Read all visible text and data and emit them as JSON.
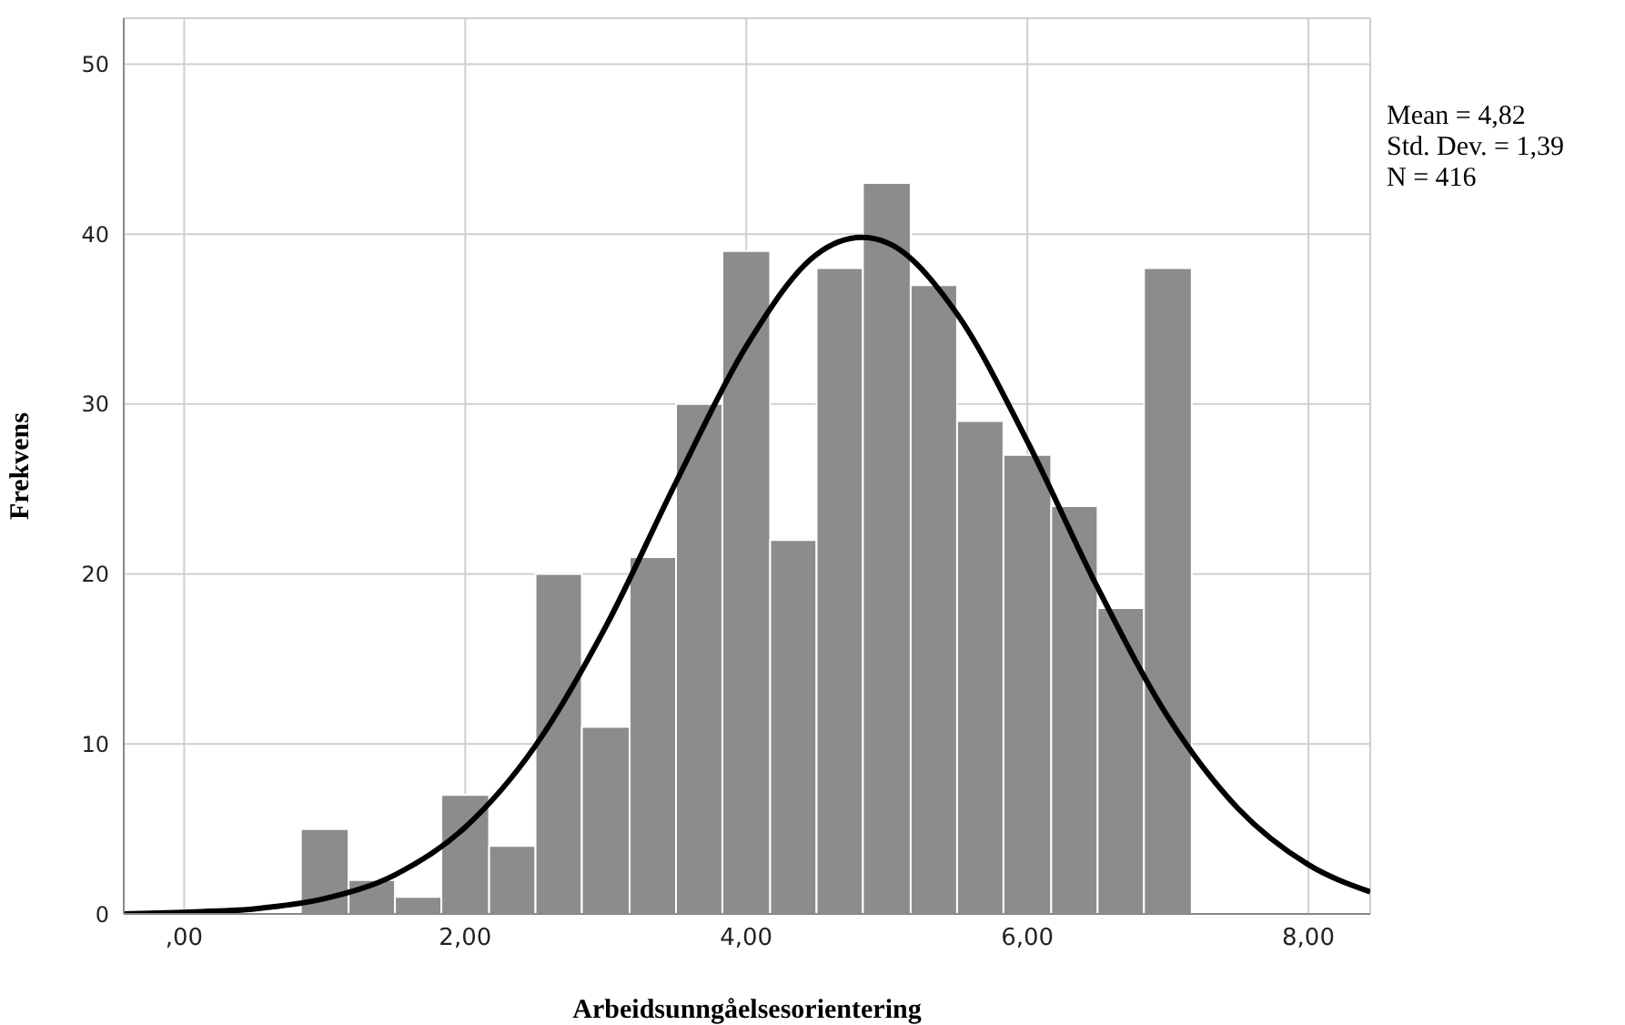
{
  "chart_data": {
    "type": "histogram",
    "xlabel": "Arbeidsunngåelsesorientering",
    "ylabel": "Frekvens",
    "bins": [
      0.83,
      1.17,
      1.5,
      1.83,
      2.17,
      2.5,
      2.83,
      3.17,
      3.5,
      3.83,
      4.17,
      4.5,
      4.83,
      5.17,
      5.5,
      5.83,
      6.17,
      6.5,
      6.83,
      7.17
    ],
    "values": [
      5,
      2,
      1,
      7,
      4,
      20,
      11,
      21,
      30,
      39,
      22,
      38,
      43,
      37,
      29,
      27,
      24,
      18,
      38
    ],
    "color": "#8c8c8c",
    "series": [
      {
        "type": "line",
        "color": "#000000",
        "x": [
          -0.43,
          0,
          0.5,
          1,
          1.5,
          2,
          2.5,
          3,
          3.5,
          4,
          4.5,
          4.82,
          5,
          5.5,
          6,
          6.5,
          7,
          7.5,
          8,
          8.44
        ],
        "values": [
          0,
          0.1,
          0.3,
          0.9,
          2.3,
          5.1,
          9.9,
          16.9,
          25.4,
          33.4,
          38.8,
          39.8,
          39.5,
          35.3,
          27.8,
          19.2,
          11.6,
          6.2,
          2.9,
          1.3
        ]
      }
    ],
    "xlim": [
      -0.43,
      8.44
    ],
    "xticks": [
      {
        "value": 0,
        "label": ",00"
      },
      {
        "value": 2,
        "label": "2,00"
      },
      {
        "value": 4,
        "label": "4,00"
      },
      {
        "value": 6,
        "label": "6,00"
      },
      {
        "value": 8,
        "label": "8,00"
      }
    ],
    "ylim": [
      0,
      52.7
    ],
    "yticks": [
      0,
      10,
      20,
      30,
      40,
      50
    ],
    "grid": true,
    "marker": "none",
    "annotations": [
      "Mean = 4,82",
      "Std. Dev. = 1,39",
      "N = 416"
    ]
  }
}
